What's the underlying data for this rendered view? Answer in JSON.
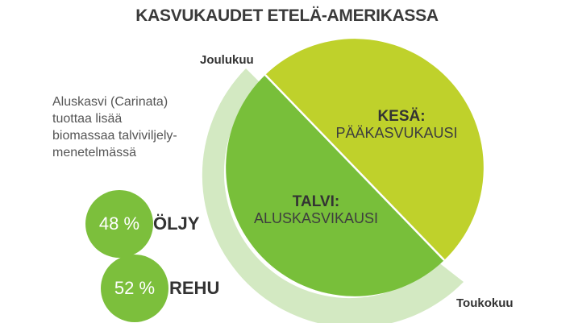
{
  "title": "KASVUKAUDET ETELÄ-AMERIKASSA",
  "colors": {
    "summer": "#BFD12B",
    "winter": "#78BF3A",
    "ring": "#D3E9C2",
    "badge": "#7CBF3C"
  },
  "diagram": {
    "season_start": "Joulukuu",
    "season_end": "Toukokuu",
    "summer": {
      "heading": "KESÄ:",
      "label": "PÄÄKASVUKAUSI"
    },
    "winter": {
      "heading": "TALVI:",
      "label": "ALUSKASVIKAUSI"
    }
  },
  "note": {
    "lines": [
      "Aluskasvi (Carinata)",
      "tuottaa lisää",
      "biomassaa talviviljely-",
      "menetelmässä"
    ]
  },
  "shares": [
    {
      "value": "48 %",
      "label": "ÖLJY"
    },
    {
      "value": "52 %",
      "label": "REHU"
    }
  ]
}
